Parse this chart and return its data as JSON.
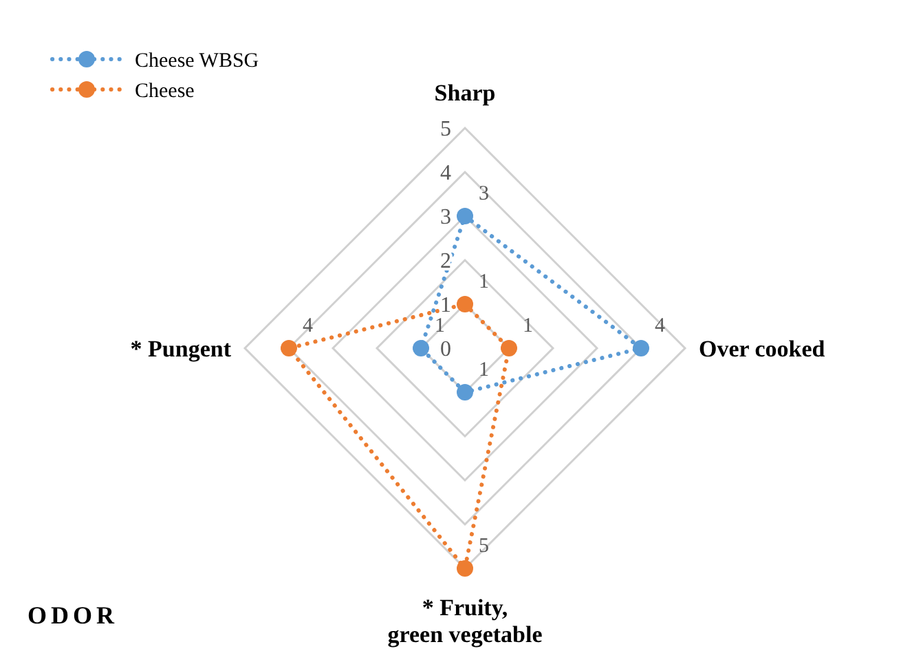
{
  "chart_data": {
    "type": "radar",
    "categories": [
      "Sharp",
      "Over cooked",
      "* Fruity, green vegetable",
      "* Pungent"
    ],
    "series": [
      {
        "name": "Cheese WBSG",
        "color": "#5b9bd5",
        "values": [
          3,
          4,
          1,
          1
        ]
      },
      {
        "name": "Cheese",
        "color": "#ed7d31",
        "values": [
          1,
          1,
          5,
          4
        ]
      }
    ],
    "ylim": [
      0,
      5
    ],
    "yticks": [
      0,
      1,
      2,
      3,
      4,
      5
    ],
    "grid": true,
    "legend": "top left",
    "marker": "circle",
    "line_style": "dotted",
    "data_labels": true,
    "annotations": [
      "ODOR"
    ]
  }
}
